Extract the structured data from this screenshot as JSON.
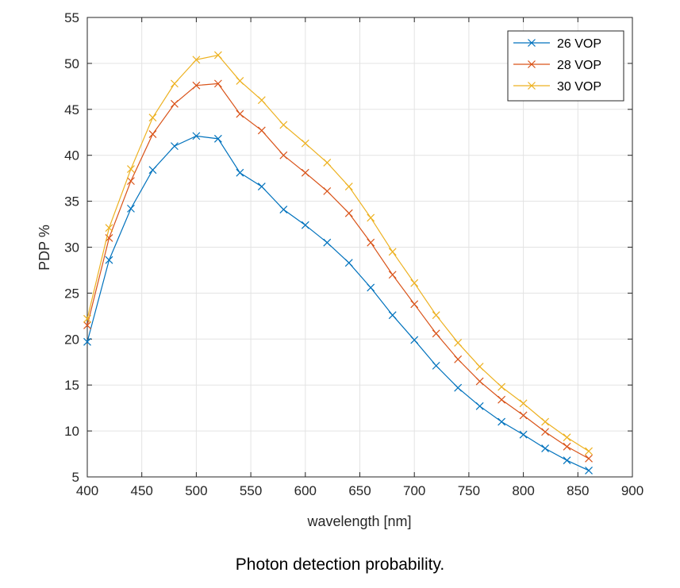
{
  "chart_data": {
    "type": "line",
    "xlabel": "wavelength [nm]",
    "ylabel": "PDP %",
    "xlim": [
      400,
      900
    ],
    "ylim": [
      5,
      55
    ],
    "xticks": [
      400,
      450,
      500,
      550,
      600,
      650,
      700,
      750,
      800,
      850,
      900
    ],
    "yticks": [
      5,
      10,
      15,
      20,
      25,
      30,
      35,
      40,
      45,
      50,
      55
    ],
    "grid": true,
    "legend_position": "top-right",
    "marker": "x",
    "x": [
      400,
      420,
      440,
      460,
      480,
      500,
      520,
      540,
      560,
      580,
      600,
      620,
      640,
      660,
      680,
      700,
      720,
      740,
      760,
      780,
      800,
      820,
      840,
      860
    ],
    "series": [
      {
        "name": "26 VOP",
        "color": "#0072BD",
        "values": [
          19.7,
          28.6,
          34.2,
          38.4,
          41.0,
          42.1,
          41.8,
          38.1,
          36.6,
          34.1,
          32.4,
          30.5,
          28.3,
          25.6,
          22.6,
          19.9,
          17.1,
          14.7,
          12.7,
          11.0,
          9.6,
          8.1,
          6.8,
          5.7
        ]
      },
      {
        "name": "28 VOP",
        "color": "#D95319",
        "values": [
          21.5,
          31.0,
          37.2,
          42.3,
          45.6,
          47.6,
          47.8,
          44.5,
          42.7,
          40.0,
          38.1,
          36.1,
          33.7,
          30.5,
          27.0,
          23.8,
          20.6,
          17.8,
          15.4,
          13.4,
          11.7,
          9.9,
          8.3,
          7.0
        ]
      },
      {
        "name": "30 VOP",
        "color": "#EDB120",
        "values": [
          22.2,
          32.1,
          38.5,
          44.1,
          47.8,
          50.4,
          50.9,
          48.1,
          46.0,
          43.3,
          41.3,
          39.2,
          36.6,
          33.2,
          29.5,
          26.1,
          22.6,
          19.6,
          17.0,
          14.8,
          13.0,
          11.0,
          9.3,
          7.8
        ]
      }
    ]
  },
  "caption": "Photon detection probability."
}
